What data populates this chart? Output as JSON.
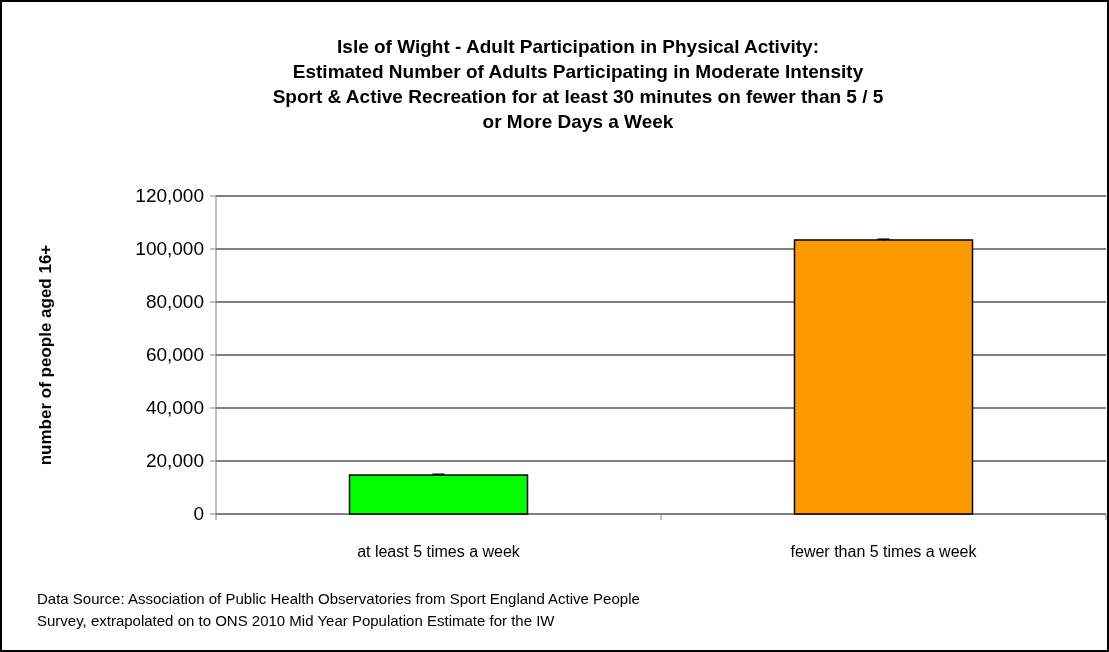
{
  "chart_data": {
    "type": "bar",
    "title": "Isle of Wight - Adult Participation in Physical Activity:\nEstimated Number of Adults Participating in Moderate Intensity\nSport & Active Recreation for at least 30 minutes on fewer than 5 / 5\nor More Days a Week",
    "ylabel": "number of people aged 16+",
    "categories": [
      "at least 5 times a week",
      "fewer than 5 times a week"
    ],
    "values": [
      14700,
      103400
    ],
    "colors": [
      "#00ff00",
      "#ff9900"
    ],
    "errors": [
      300,
      300
    ],
    "ylim": [
      0,
      120000
    ],
    "yticks": [
      {
        "value": 0,
        "label": "0"
      },
      {
        "value": 20000,
        "label": "20,000"
      },
      {
        "value": 40000,
        "label": "40,000"
      },
      {
        "value": 60000,
        "label": "60,000"
      },
      {
        "value": 80000,
        "label": "80,000"
      },
      {
        "value": 100000,
        "label": "100,000"
      },
      {
        "value": 120000,
        "label": "120,000"
      }
    ],
    "grid": "y",
    "annotations": [
      "Data Source: Association of Public Health Observatories from Sport England Active People\nSurvey, extrapolated on to ONS 2010 Mid Year Population Estimate for the IW"
    ]
  }
}
